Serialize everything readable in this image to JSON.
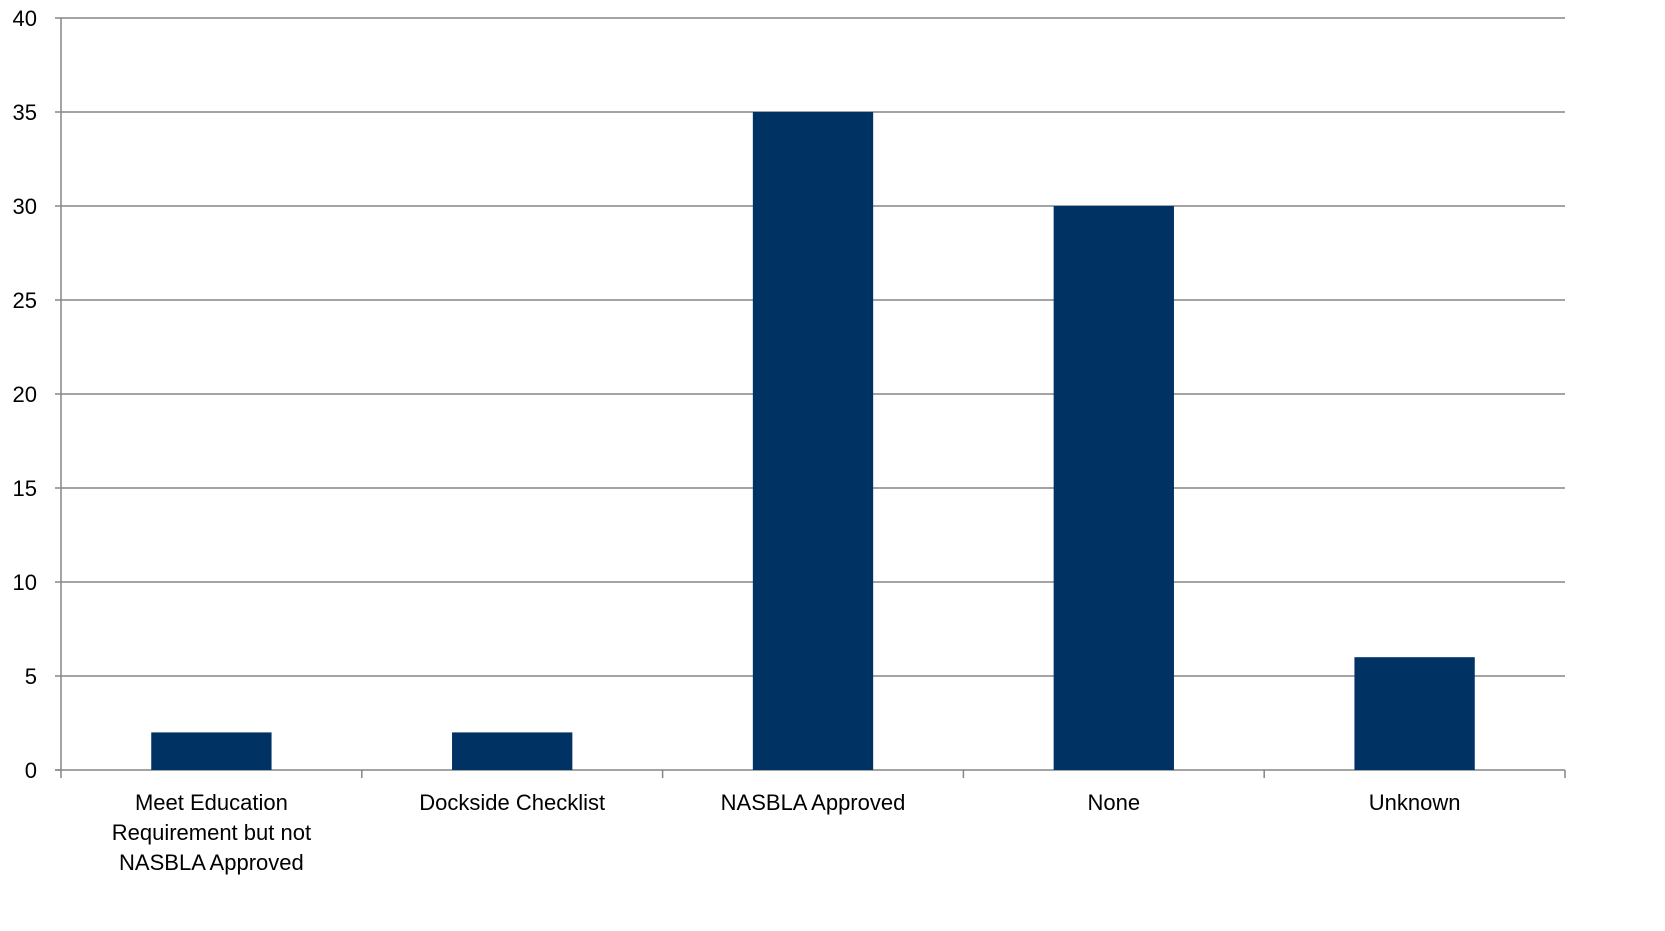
{
  "chart_data": {
    "type": "bar",
    "title": "",
    "xlabel": "",
    "ylabel": "",
    "categories": [
      [
        "Meet Education",
        "Requirement but not",
        "NASBLA Approved"
      ],
      [
        "Dockside Checklist"
      ],
      [
        "NASBLA Approved"
      ],
      [
        "None"
      ],
      [
        "Unknown"
      ]
    ],
    "values": [
      2,
      2,
      35,
      30,
      6
    ],
    "ylim": [
      0,
      40
    ],
    "yticks": [
      0,
      5,
      10,
      15,
      20,
      25,
      30,
      35,
      40
    ],
    "grid": true,
    "legend": "none",
    "colors": {
      "bar": "#003263",
      "grid": "#868686",
      "axis": "#868686"
    }
  }
}
